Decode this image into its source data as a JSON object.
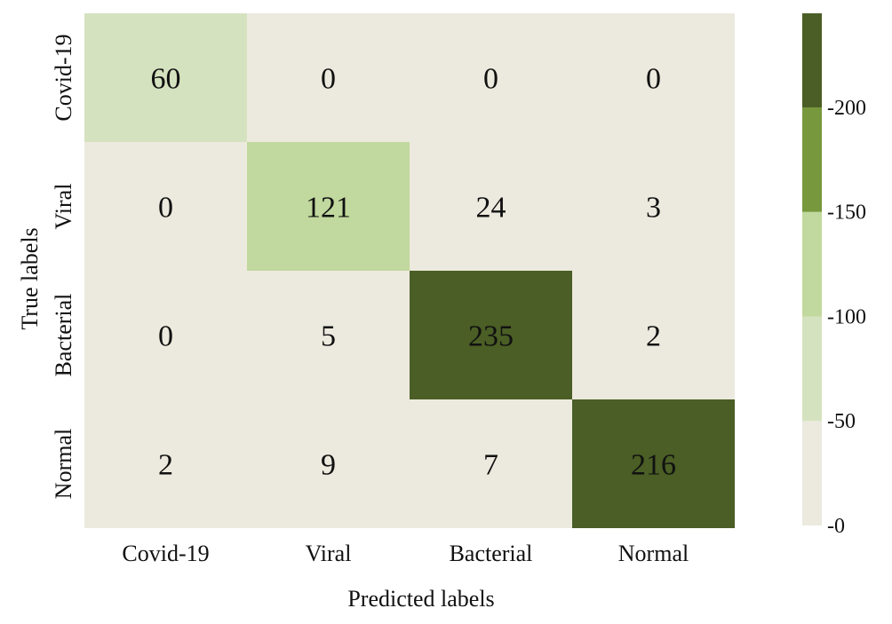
{
  "chart_data": {
    "type": "heatmap",
    "x_categories": [
      "Covid-19",
      "Viral",
      "Bacterial",
      "Normal"
    ],
    "y_categories": [
      "Covid-19",
      "Viral",
      "Bacterial",
      "Normal"
    ],
    "values": [
      [
        60,
        0,
        0,
        0
      ],
      [
        0,
        121,
        24,
        3
      ],
      [
        0,
        5,
        235,
        2
      ],
      [
        2,
        9,
        7,
        216
      ]
    ],
    "xlabel": "Predicted labels",
    "ylabel": "True  labels",
    "colorbar": {
      "ticks": [
        0,
        50,
        100,
        150,
        200
      ],
      "tick_labels": [
        "-0",
        "-50",
        "-100",
        "-150",
        "-200"
      ],
      "range": [
        0,
        245
      ],
      "levels": [
        {
          "min": 0,
          "max": 50,
          "color": "#eceade"
        },
        {
          "min": 50,
          "max": 100,
          "color": "#d5e2bf"
        },
        {
          "min": 100,
          "max": 150,
          "color": "#c1d89e"
        },
        {
          "min": 150,
          "max": 200,
          "color": "#77983d"
        },
        {
          "min": 200,
          "max": 245,
          "color": "#4a5e25"
        }
      ]
    },
    "grid": false
  }
}
